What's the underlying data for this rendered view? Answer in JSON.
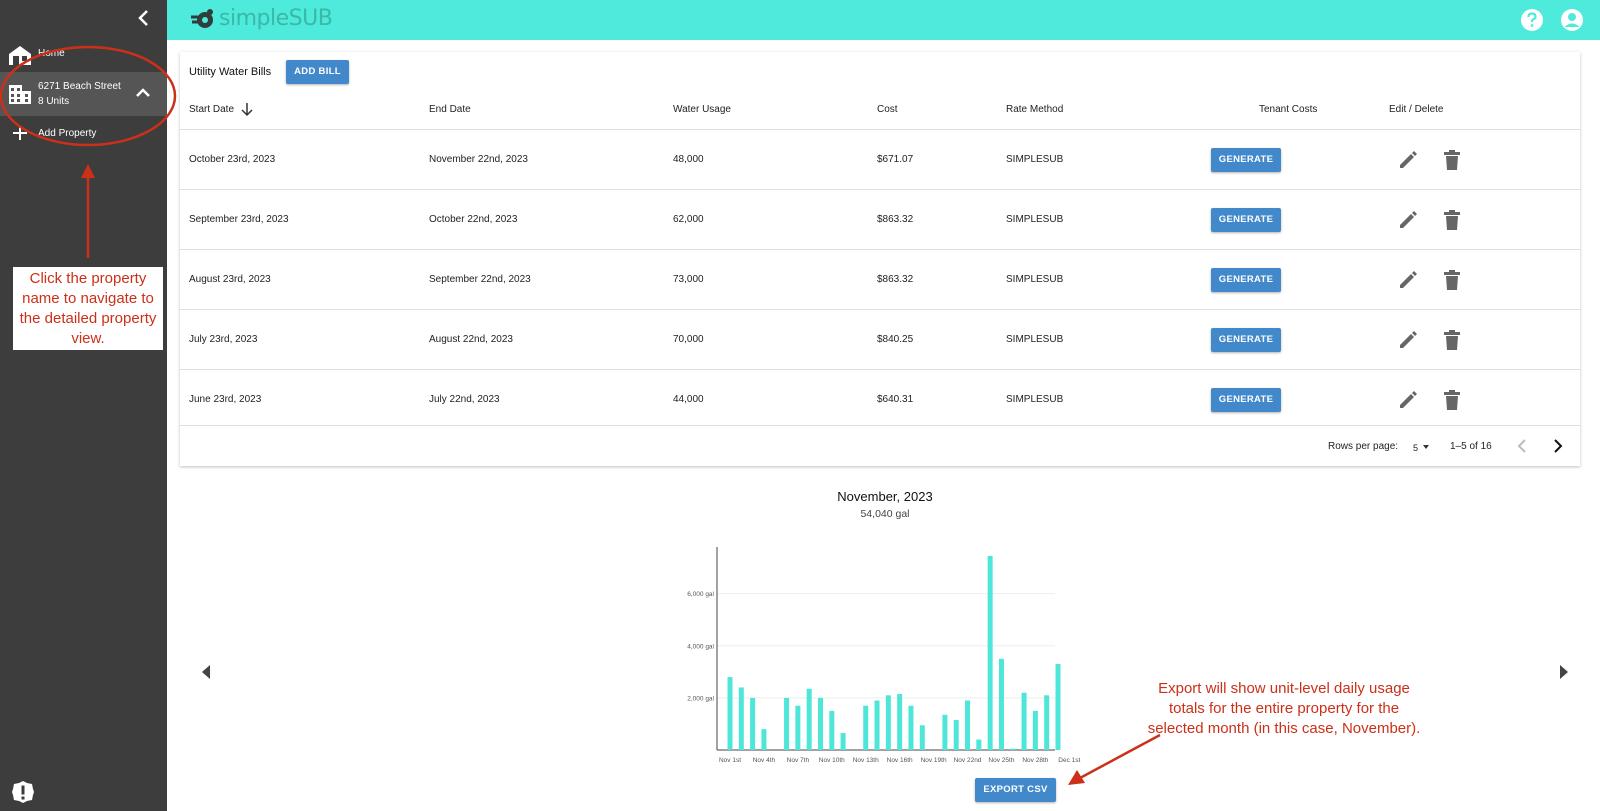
{
  "sidebar": {
    "home_label": "Home",
    "property": {
      "name": "6271 Beach Street",
      "units": "8 Units"
    },
    "add_property_label": "Add Property"
  },
  "topbar": {
    "logo_prefix": "simple",
    "logo_suffix": "SUB"
  },
  "bills": {
    "title": "Utility Water Bills",
    "add_button": "ADD BILL",
    "columns": [
      "Start Date",
      "End Date",
      "Water Usage",
      "Cost",
      "Rate Method",
      "Tenant Costs",
      "Edit / Delete"
    ],
    "rows": [
      {
        "start": "October 23rd, 2023",
        "end": "November 22nd, 2023",
        "usage": "48,000",
        "cost": "$671.07",
        "rate": "SIMPLESUB",
        "action": "GENERATE"
      },
      {
        "start": "September 23rd, 2023",
        "end": "October 22nd, 2023",
        "usage": "62,000",
        "cost": "$863.32",
        "rate": "SIMPLESUB",
        "action": "GENERATE"
      },
      {
        "start": "August 23rd, 2023",
        "end": "September 22nd, 2023",
        "usage": "73,000",
        "cost": "$863.32",
        "rate": "SIMPLESUB",
        "action": "GENERATE"
      },
      {
        "start": "July 23rd, 2023",
        "end": "August 22nd, 2023",
        "usage": "70,000",
        "cost": "$840.25",
        "rate": "SIMPLESUB",
        "action": "GENERATE"
      },
      {
        "start": "June 23rd, 2023",
        "end": "July 22nd, 2023",
        "usage": "44,000",
        "cost": "$640.31",
        "rate": "SIMPLESUB",
        "action": "GENERATE"
      }
    ],
    "rows_per_page_label": "Rows per page:",
    "rows_per_page_value": "5",
    "range": "1–5 of 16"
  },
  "usage": {
    "title": "November, 2023",
    "total": "54,040 gal",
    "export_button": "EXPORT CSV"
  },
  "chart_data": {
    "type": "bar",
    "color": "#4ee6d8",
    "ylim": [
      0,
      7600
    ],
    "yticks": [
      {
        "value": 2000,
        "label": "2,000 gal"
      },
      {
        "value": 4000,
        "label": "4,000 gal"
      },
      {
        "value": 6000,
        "label": "6,000 gal"
      }
    ],
    "xticks": [
      {
        "index": 0,
        "label": "Nov 1st"
      },
      {
        "index": 3,
        "label": "Nov 4th"
      },
      {
        "index": 6,
        "label": "Nov 7th"
      },
      {
        "index": 9,
        "label": "Nov 10th"
      },
      {
        "index": 12,
        "label": "Nov 13th"
      },
      {
        "index": 15,
        "label": "Nov 16th"
      },
      {
        "index": 18,
        "label": "Nov 19th"
      },
      {
        "index": 21,
        "label": "Nov 22nd"
      },
      {
        "index": 24,
        "label": "Nov 25th"
      },
      {
        "index": 27,
        "label": "Nov 28th"
      },
      {
        "index": 30,
        "label": "Dec 1st"
      }
    ],
    "values": [
      2800,
      2400,
      2000,
      800,
      0,
      2000,
      1700,
      2350,
      2000,
      1500,
      650,
      0,
      1700,
      1900,
      2100,
      2150,
      1700,
      950,
      0,
      1350,
      1150,
      1900,
      400,
      7450,
      3500,
      50,
      2200,
      1500,
      2100,
      3300
    ]
  },
  "annotations": {
    "sidebar_note": "Click the property name to navigate to the detailed property view.",
    "export_note": "Export will show unit-level daily usage totals for the entire property for the selected month (in this case, November)."
  },
  "colors": {
    "topbar": "#4eeadb",
    "sidebar": "#3d3d3d",
    "button": "#4289cb",
    "annotation": "#cc3018"
  }
}
